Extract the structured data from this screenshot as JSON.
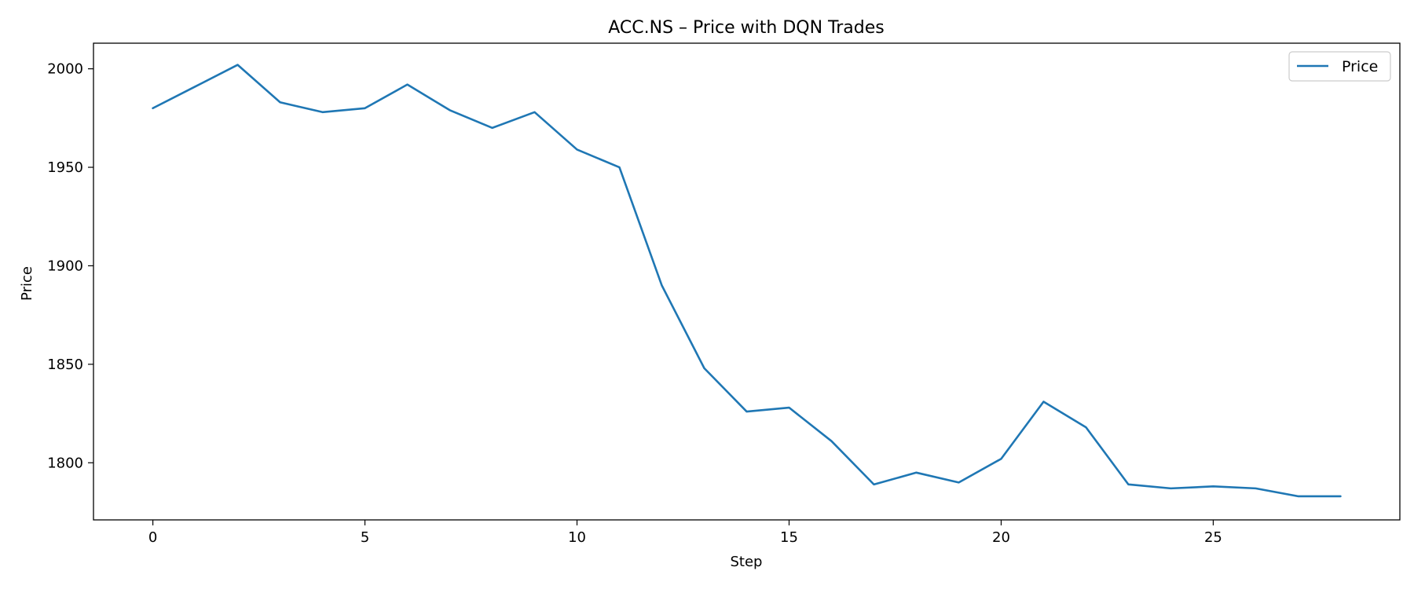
{
  "chart_data": {
    "type": "line",
    "title": "ACC.NS – Price with DQN Trades",
    "xlabel": "Step",
    "ylabel": "Price",
    "xlim": [
      -1.4,
      29.4
    ],
    "ylim": [
      1771,
      2013
    ],
    "xticks": [
      0,
      5,
      10,
      15,
      20,
      25
    ],
    "yticks": [
      1800,
      1850,
      1900,
      1950,
      2000
    ],
    "grid": false,
    "legend_position": "top-right",
    "series": [
      {
        "name": "Price",
        "color": "#1f77b4",
        "x": [
          0,
          1,
          2,
          3,
          4,
          5,
          6,
          7,
          8,
          9,
          10,
          11,
          12,
          13,
          14,
          15,
          16,
          17,
          18,
          19,
          20,
          21,
          22,
          23,
          24,
          25,
          26,
          27,
          28
        ],
        "values": [
          1980,
          1991,
          2002,
          1983,
          1978,
          1980,
          1992,
          1979,
          1970,
          1978,
          1959,
          1950,
          1890,
          1848,
          1826,
          1828,
          1811,
          1789,
          1795,
          1790,
          1802,
          1831,
          1818,
          1789,
          1787,
          1788,
          1787,
          1783,
          1783
        ]
      }
    ]
  }
}
